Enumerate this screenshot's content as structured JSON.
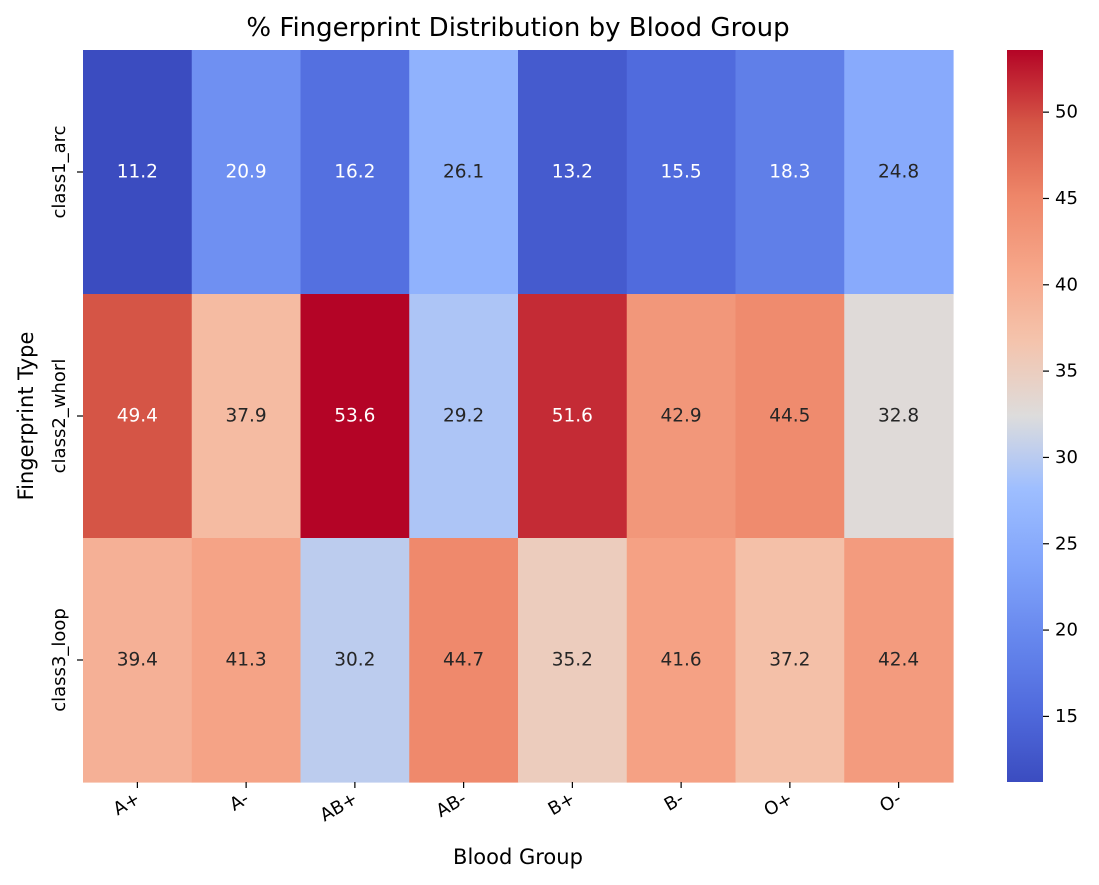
{
  "chart_data": {
    "type": "heatmap",
    "title": "% Fingerprint Distribution by Blood Group",
    "xlabel": "Blood Group",
    "ylabel": "Fingerprint Type",
    "x_categories": [
      "A+",
      "A-",
      "AB+",
      "AB-",
      "B+",
      "B-",
      "O+",
      "O-"
    ],
    "y_categories": [
      "class1_arc",
      "class2_whorl",
      "class3_loop"
    ],
    "values": [
      [
        11.2,
        20.9,
        16.2,
        26.1,
        13.2,
        15.5,
        18.3,
        24.8
      ],
      [
        49.4,
        37.9,
        53.6,
        29.2,
        51.6,
        42.9,
        44.5,
        32.8
      ],
      [
        39.4,
        41.3,
        30.2,
        44.7,
        35.2,
        41.6,
        37.2,
        42.4
      ]
    ],
    "colormap": "coolwarm",
    "vmin": 11.2,
    "vmax": 53.6,
    "colorbar_ticks": [
      15,
      20,
      25,
      30,
      35,
      40,
      45,
      50
    ],
    "annotated": true,
    "annotation_format": "0.1f",
    "colors": {
      "low": "#3b4cc0",
      "mid": "#dddddd",
      "high": "#b40426"
    }
  }
}
